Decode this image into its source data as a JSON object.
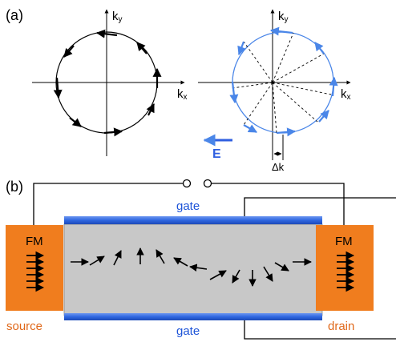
{
  "panel_a": {
    "label": "(a)",
    "ky_label": "k",
    "ky_sub": "y",
    "kx_label": "k",
    "kx_sub": "x",
    "ky2_label": "k",
    "ky2_sub": "y",
    "kx2_label": "k",
    "kx2_sub": "x",
    "field_label": "E",
    "shift_label": "Δk"
  },
  "panel_b": {
    "label": "(b)",
    "gate_top": "gate",
    "gate_bottom": "gate",
    "fm_left": "FM",
    "fm_right": "FM",
    "source": "source",
    "drain": "drain"
  },
  "colors": {
    "blue_circle": "#4a86e8",
    "electrode": "#f07d1e",
    "gate_blue": "#2f67e0",
    "channel": "#c8c8c8"
  }
}
